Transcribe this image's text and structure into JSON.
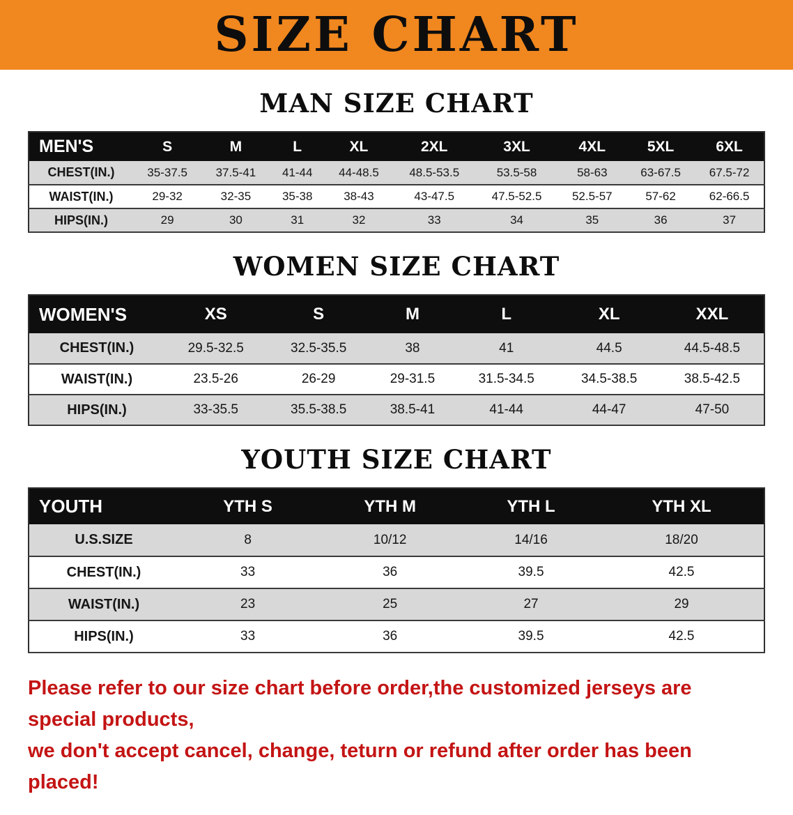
{
  "banner": {
    "title": "SIZE CHART"
  },
  "men": {
    "heading": "MAN SIZE CHART",
    "header": [
      "MEN'S",
      "S",
      "M",
      "L",
      "XL",
      "2XL",
      "3XL",
      "4XL",
      "5XL",
      "6XL"
    ],
    "rows": [
      [
        "CHEST(IN.)",
        "35-37.5",
        "37.5-41",
        "41-44",
        "44-48.5",
        "48.5-53.5",
        "53.5-58",
        "58-63",
        "63-67.5",
        "67.5-72"
      ],
      [
        "WAIST(IN.)",
        "29-32",
        "32-35",
        "35-38",
        "38-43",
        "43-47.5",
        "47.5-52.5",
        "52.5-57",
        "57-62",
        "62-66.5"
      ],
      [
        "HIPS(IN.)",
        "29",
        "30",
        "31",
        "32",
        "33",
        "34",
        "35",
        "36",
        "37"
      ]
    ]
  },
  "women": {
    "heading": "WOMEN SIZE CHART",
    "header": [
      "WOMEN'S",
      "XS",
      "S",
      "M",
      "L",
      "XL",
      "XXL"
    ],
    "rows": [
      [
        "CHEST(IN.)",
        "29.5-32.5",
        "32.5-35.5",
        "38",
        "41",
        "44.5",
        "44.5-48.5"
      ],
      [
        "WAIST(IN.)",
        "23.5-26",
        "26-29",
        "29-31.5",
        "31.5-34.5",
        "34.5-38.5",
        "38.5-42.5"
      ],
      [
        "HIPS(IN.)",
        "33-35.5",
        "35.5-38.5",
        "38.5-41",
        "41-44",
        "44-47",
        "47-50"
      ]
    ]
  },
  "youth": {
    "heading": "YOUTH SIZE CHART",
    "header": [
      "YOUTH",
      "YTH S",
      "YTH M",
      "YTH L",
      "YTH XL"
    ],
    "rows": [
      [
        "U.S.SIZE",
        "8",
        "10/12",
        "14/16",
        "18/20"
      ],
      [
        "CHEST(IN.)",
        "33",
        "36",
        "39.5",
        "42.5"
      ],
      [
        "WAIST(IN.)",
        "23",
        "25",
        "27",
        "29"
      ],
      [
        "HIPS(IN.)",
        "33",
        "36",
        "39.5",
        "42.5"
      ]
    ]
  },
  "disclaimer": {
    "line1": "Please refer to our size chart before order,the customized jerseys are special products,",
    "line2": "we don't accept cancel, change, teturn or refund after order has been placed!"
  },
  "colors": {
    "banner_bg": "#f0871f",
    "header_bg": "#0e0e0e",
    "row_alt": "#d8d8d8",
    "disclaimer": "#c41414"
  }
}
